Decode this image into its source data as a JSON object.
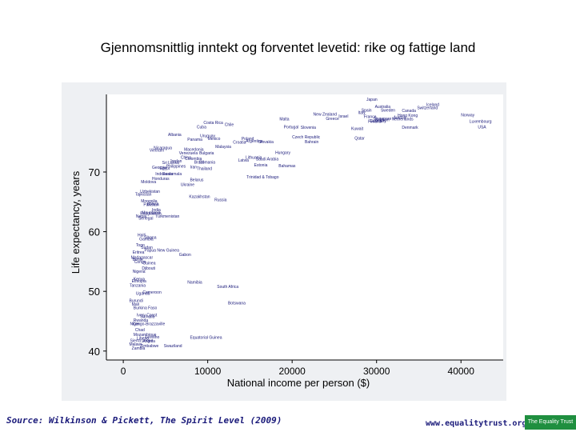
{
  "title": "Gjennomsnittlig inntekt og forventet levetid: rike og fattige land",
  "source": "Source: Wilkinson & Pickett, The Spirit Level (2009)",
  "footer_url": "www.equalitytrust.org.uk",
  "logo_text": "The Equality Trust",
  "colors": {
    "panel": "#eef0f3",
    "plot_bg": "#ffffff",
    "label": "#1a1a7a",
    "logo": "#1f8f3f"
  },
  "chart_data": {
    "type": "scatter",
    "xlabel": "National income per person ($)",
    "ylabel": "Life expectancy, years",
    "xlim": [
      -2000,
      45000
    ],
    "ylim": [
      38.5,
      83
    ],
    "xticks": [
      0,
      10000,
      20000,
      30000,
      40000
    ],
    "xtick_labels": [
      "0",
      "10000",
      "20000",
      "30000",
      "40000"
    ],
    "yticks": [
      40,
      50,
      60,
      70
    ],
    "ytick_labels": [
      "40",
      "50",
      "60",
      "70"
    ],
    "grid": false,
    "points": [
      {
        "label": "Japan",
        "x": 28800,
        "y": 82.2
      },
      {
        "label": "Iceland",
        "x": 35900,
        "y": 81.3
      },
      {
        "label": "Australia",
        "x": 29800,
        "y": 81.0
      },
      {
        "label": "Switzerland",
        "x": 34800,
        "y": 80.8
      },
      {
        "label": "Spain",
        "x": 28200,
        "y": 80.4
      },
      {
        "label": "Sweden",
        "x": 30500,
        "y": 80.4
      },
      {
        "label": "Canada",
        "x": 33000,
        "y": 80.3
      },
      {
        "label": "Italy",
        "x": 27800,
        "y": 80.0
      },
      {
        "label": "New Zealand",
        "x": 22500,
        "y": 79.7
      },
      {
        "label": "Hong Kong",
        "x": 32500,
        "y": 79.5
      },
      {
        "label": "Norway",
        "x": 40000,
        "y": 79.6
      },
      {
        "label": "Israel",
        "x": 25500,
        "y": 79.4
      },
      {
        "label": "France",
        "x": 28500,
        "y": 79.3
      },
      {
        "label": "Austria",
        "x": 32000,
        "y": 79.2
      },
      {
        "label": "Greece",
        "x": 24000,
        "y": 79.0
      },
      {
        "label": "Singapore",
        "x": 29600,
        "y": 79.0
      },
      {
        "label": "Netherlands",
        "x": 31800,
        "y": 78.9
      },
      {
        "label": "Malta",
        "x": 18500,
        "y": 78.9
      },
      {
        "label": "Belgium",
        "x": 29800,
        "y": 78.8
      },
      {
        "label": "Luxembourg",
        "x": 41000,
        "y": 78.5
      },
      {
        "label": "Finland",
        "x": 29000,
        "y": 78.5
      },
      {
        "label": "Costa Rica",
        "x": 9500,
        "y": 78.3
      },
      {
        "label": "Cuba",
        "x": 8700,
        "y": 77.6
      },
      {
        "label": "Chile",
        "x": 12000,
        "y": 78.0
      },
      {
        "label": "Germany",
        "x": 29200,
        "y": 78.6
      },
      {
        "label": "Portugal",
        "x": 19000,
        "y": 77.6
      },
      {
        "label": "Denmark",
        "x": 33000,
        "y": 77.5
      },
      {
        "label": "USA",
        "x": 42000,
        "y": 77.6
      },
      {
        "label": "Slovenia",
        "x": 21000,
        "y": 77.5
      },
      {
        "label": "Czech Republic",
        "x": 20000,
        "y": 75.9
      },
      {
        "label": "Kuwait",
        "x": 27000,
        "y": 77.3
      },
      {
        "label": "Qatar",
        "x": 27400,
        "y": 75.7
      },
      {
        "label": "Uruguay",
        "x": 9100,
        "y": 76.1
      },
      {
        "label": "Mexico",
        "x": 10000,
        "y": 75.6
      },
      {
        "label": "Poland",
        "x": 14000,
        "y": 75.6
      },
      {
        "label": "Croatia",
        "x": 13000,
        "y": 75.0
      },
      {
        "label": "Bahrain",
        "x": 21500,
        "y": 75.1
      },
      {
        "label": "Slovakia",
        "x": 16000,
        "y": 75.1
      },
      {
        "label": "Albania",
        "x": 5300,
        "y": 76.3
      },
      {
        "label": "Panama",
        "x": 7600,
        "y": 75.5
      },
      {
        "label": "Argentina",
        "x": 14500,
        "y": 75.2
      },
      {
        "label": "Malaysia",
        "x": 10900,
        "y": 74.3
      },
      {
        "label": "Hungary",
        "x": 18000,
        "y": 73.3
      },
      {
        "label": "Bulgaria",
        "x": 9000,
        "y": 73.2
      },
      {
        "label": "Macedonia",
        "x": 7200,
        "y": 73.8
      },
      {
        "label": "Nicaragua",
        "x": 3600,
        "y": 74.1
      },
      {
        "label": "Vietnam",
        "x": 3100,
        "y": 73.7
      },
      {
        "label": "China",
        "x": 6800,
        "y": 72.5
      },
      {
        "label": "Venezuela",
        "x": 6600,
        "y": 73.2
      },
      {
        "label": "Jordan",
        "x": 5500,
        "y": 71.9
      },
      {
        "label": "Brazil",
        "x": 8400,
        "y": 71.7
      },
      {
        "label": "Saudi Arabia",
        "x": 15700,
        "y": 72.2
      },
      {
        "label": "Estonia",
        "x": 15500,
        "y": 71.2
      },
      {
        "label": "Latvia",
        "x": 13600,
        "y": 72.0
      },
      {
        "label": "Lithuania",
        "x": 14500,
        "y": 72.5
      },
      {
        "label": "Bahamas",
        "x": 18400,
        "y": 71.1
      },
      {
        "label": "Romania",
        "x": 9000,
        "y": 71.7
      },
      {
        "label": "Thailand",
        "x": 8700,
        "y": 70.6
      },
      {
        "label": "Iran",
        "x": 7900,
        "y": 70.9
      },
      {
        "label": "Sri Lanka",
        "x": 4600,
        "y": 71.6
      },
      {
        "label": "Colombia",
        "x": 7300,
        "y": 72.3
      },
      {
        "label": "Georgia",
        "x": 3400,
        "y": 70.8
      },
      {
        "label": "Philippines",
        "x": 5100,
        "y": 71.0
      },
      {
        "label": "Indonesia",
        "x": 3800,
        "y": 69.7
      },
      {
        "label": "Honduras",
        "x": 3400,
        "y": 68.9
      },
      {
        "label": "Moldova",
        "x": 2100,
        "y": 68.4
      },
      {
        "label": "Ukraine",
        "x": 6800,
        "y": 67.9
      },
      {
        "label": "Russia",
        "x": 10800,
        "y": 65.4
      },
      {
        "label": "Kazakhstan",
        "x": 7800,
        "y": 65.9
      },
      {
        "label": "Belarus",
        "x": 7900,
        "y": 68.7
      },
      {
        "label": "Egypt",
        "x": 4300,
        "y": 70.7
      },
      {
        "label": "Trinidad & Tobago",
        "x": 14600,
        "y": 69.2
      },
      {
        "label": "Guatemala",
        "x": 4600,
        "y": 69.7
      },
      {
        "label": "Bolivia",
        "x": 2800,
        "y": 64.7
      },
      {
        "label": "Mongolia",
        "x": 2100,
        "y": 65.2
      },
      {
        "label": "Uzbekistan",
        "x": 2000,
        "y": 66.8
      },
      {
        "label": "Tajikistan",
        "x": 1400,
        "y": 66.3
      },
      {
        "label": "India",
        "x": 3400,
        "y": 63.7
      },
      {
        "label": "Pakistan",
        "x": 2400,
        "y": 64.6
      },
      {
        "label": "Turkmenistan",
        "x": 3800,
        "y": 62.6
      },
      {
        "label": "Bangladesh",
        "x": 2000,
        "y": 63.1
      },
      {
        "label": "Nepal",
        "x": 1500,
        "y": 62.6
      },
      {
        "label": "Haiti",
        "x": 1700,
        "y": 59.5
      },
      {
        "label": "Gambia",
        "x": 1900,
        "y": 58.8
      },
      {
        "label": "Ghana",
        "x": 2500,
        "y": 59.1
      },
      {
        "label": "Sudan",
        "x": 2100,
        "y": 57.4
      },
      {
        "label": "Senegal",
        "x": 1800,
        "y": 62.3
      },
      {
        "label": "Namibia",
        "x": 7600,
        "y": 51.6
      },
      {
        "label": "South Africa",
        "x": 11100,
        "y": 50.8
      },
      {
        "label": "Botswana",
        "x": 12400,
        "y": 48.1
      },
      {
        "label": "Gabon",
        "x": 6600,
        "y": 56.2
      },
      {
        "label": "Papua New Guinea",
        "x": 2500,
        "y": 56.9
      },
      {
        "label": "Eritrea",
        "x": 1100,
        "y": 56.6
      },
      {
        "label": "Togo",
        "x": 1500,
        "y": 57.8
      },
      {
        "label": "Benin",
        "x": 1100,
        "y": 55.4
      },
      {
        "label": "Djibouti",
        "x": 2200,
        "y": 53.9
      },
      {
        "label": "Kenya",
        "x": 1200,
        "y": 52.1
      },
      {
        "label": "Guinea",
        "x": 2300,
        "y": 54.8
      },
      {
        "label": "Ethiopia",
        "x": 1000,
        "y": 51.8
      },
      {
        "label": "Tanzania",
        "x": 750,
        "y": 51.0
      },
      {
        "label": "Uganda",
        "x": 1500,
        "y": 49.7
      },
      {
        "label": "Cameroon",
        "x": 2300,
        "y": 49.9
      },
      {
        "label": "Burundi",
        "x": 700,
        "y": 48.5
      },
      {
        "label": "Rwanda",
        "x": 1200,
        "y": 45.2
      },
      {
        "label": "Congo-Brazzaville",
        "x": 1100,
        "y": 44.6
      },
      {
        "label": "Mozambique",
        "x": 1200,
        "y": 42.8
      },
      {
        "label": "Malawi",
        "x": 700,
        "y": 41.2
      },
      {
        "label": "Zambia",
        "x": 1000,
        "y": 40.5
      },
      {
        "label": "Zimbabwe",
        "x": 2000,
        "y": 40.9
      },
      {
        "label": "Swaziland",
        "x": 4800,
        "y": 40.9
      },
      {
        "label": "Equatorial Guinea",
        "x": 7900,
        "y": 42.3
      },
      {
        "label": "Angola",
        "x": 2300,
        "y": 41.7
      },
      {
        "label": "Lesotho",
        "x": 2600,
        "y": 42.4
      },
      {
        "label": "Sierra Leone",
        "x": 800,
        "y": 41.8
      },
      {
        "label": "Liberia",
        "x": 1600,
        "y": 42.2
      },
      {
        "label": "Niger",
        "x": 800,
        "y": 44.6
      },
      {
        "label": "Mali",
        "x": 1000,
        "y": 47.9
      },
      {
        "label": "Chad",
        "x": 1400,
        "y": 43.6
      },
      {
        "label": "Somalia",
        "x": 2000,
        "y": 45.8
      },
      {
        "label": "Ivory Coast",
        "x": 1600,
        "y": 46.1
      },
      {
        "label": "Congo",
        "x": 1300,
        "y": 55.0
      },
      {
        "label": "Nigeria",
        "x": 1100,
        "y": 53.4
      },
      {
        "label": "Madagascar",
        "x": 900,
        "y": 55.7
      },
      {
        "label": "Burkina Faso",
        "x": 1200,
        "y": 47.3
      },
      {
        "label": "Mauritania",
        "x": 2200,
        "y": 63.2
      }
    ]
  }
}
